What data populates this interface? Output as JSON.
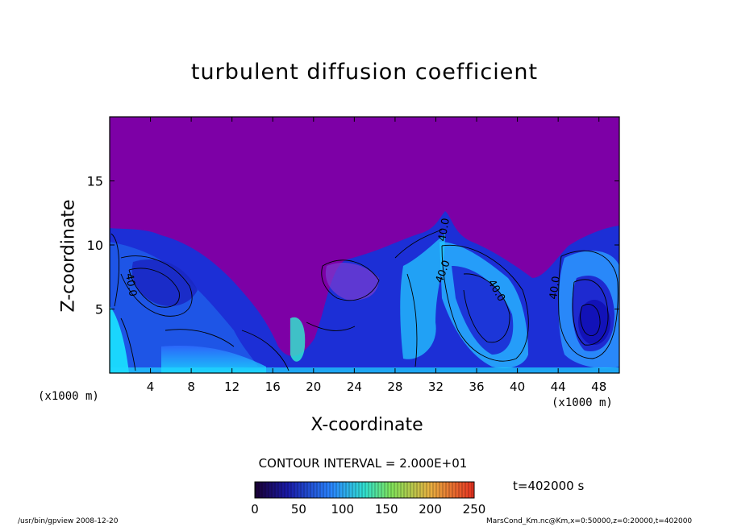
{
  "chart_data": {
    "type": "heatmap",
    "title": "turbulent diffusion coefficient",
    "xlabel": "X-coordinate",
    "ylabel": "Z-coordinate",
    "x_unit": "(x1000 m)",
    "y_unit": "(x1000 m)",
    "xlim": [
      0,
      50
    ],
    "ylim": [
      0,
      20
    ],
    "x_ticks": [
      4,
      8,
      12,
      16,
      20,
      24,
      28,
      32,
      36,
      40,
      44,
      48
    ],
    "y_ticks": [
      5,
      10,
      15
    ],
    "contour_labels": [
      "40.0",
      "40.0",
      "40.0",
      "40.0",
      "40.0"
    ],
    "contour_interval_text": "CONTOUR INTERVAL = 2.000E+01",
    "colorbar": {
      "min": 0,
      "max": 250,
      "ticks": [
        0,
        50,
        100,
        150,
        200,
        250
      ]
    },
    "time_text": "t=402000 s",
    "colors": {
      "background_field": "#7d00a6",
      "low": "#2a2ad8",
      "mid": "#1f8bff",
      "high": "#19e4ff"
    }
  },
  "footer": {
    "left": "/usr/bin/gpview   2008-12-20",
    "right": "MarsCond_Km.nc@Km,x=0:50000,z=0:20000,t=402000"
  }
}
